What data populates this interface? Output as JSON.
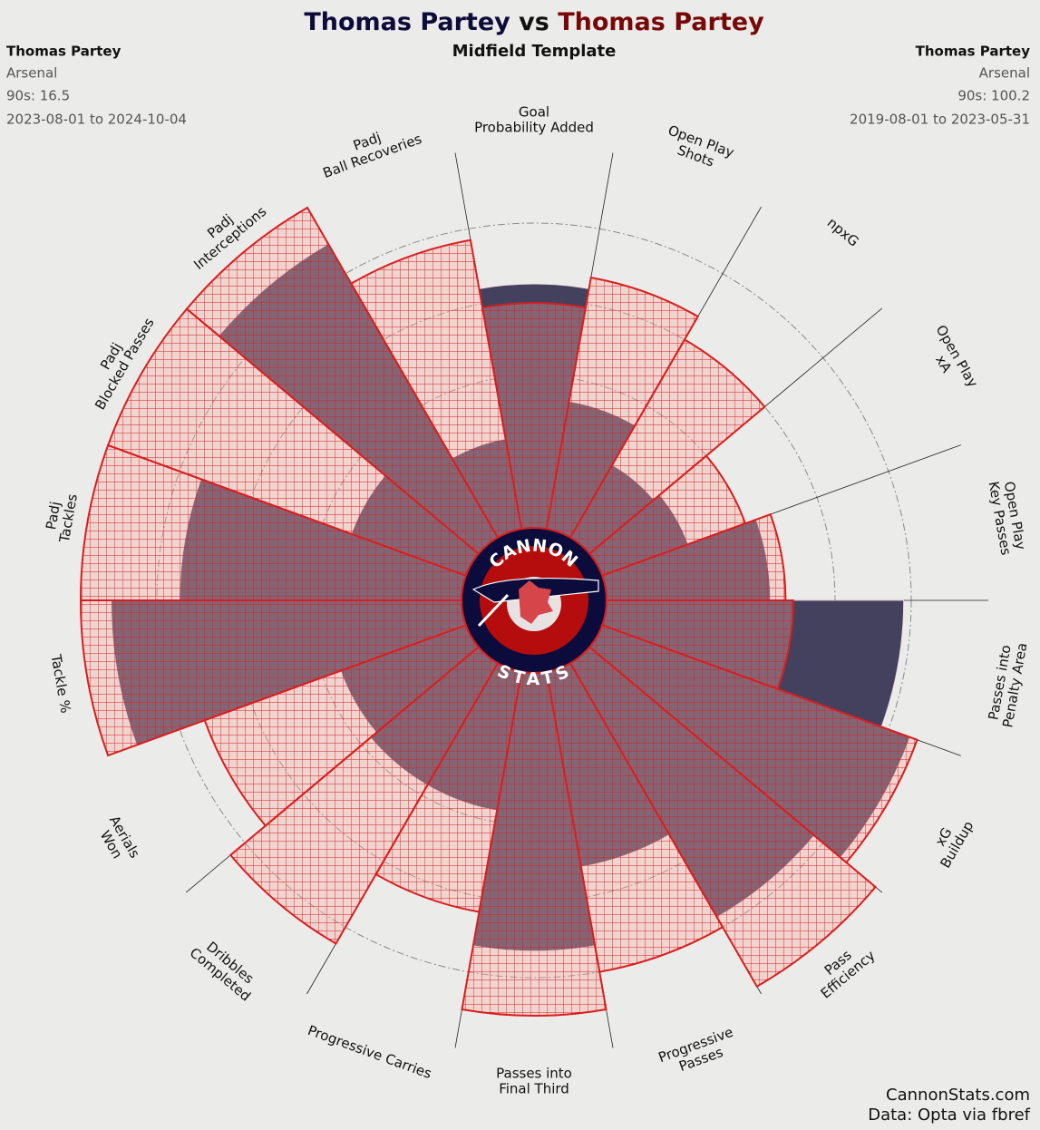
{
  "chart_data": {
    "type": "pizza",
    "title_connector": "vs",
    "subtitle": "Midfield Template",
    "series": [
      {
        "name": "Thomas Partey",
        "team": "Arsenal",
        "nineties": "90s: 16.5",
        "dates": "2023-08-01 to 2024-10-04",
        "color": "#44415f",
        "text_color": "#0d0b3a",
        "values": [
          64,
          34,
          22,
          24,
          43,
          78,
          86,
          77,
          52,
          73,
          37,
          37,
          35,
          92,
          74,
          32,
          89,
          24
        ]
      },
      {
        "name": "Thomas Partey",
        "team": "Arsenal",
        "nineties": "90s: 100.2",
        "dates": "2019-08-01 to 2023-05-31",
        "color": "#d91e1e",
        "text_color": "#780808",
        "values": [
          59,
          67,
          60,
          40,
          47,
          49,
          88,
          98,
          80,
          90,
          64,
          85,
          73,
          100,
          100,
          100,
          100,
          77
        ]
      }
    ],
    "categories": [
      [
        "Goal",
        "Probability Added"
      ],
      [
        "Open Play",
        "Shots"
      ],
      [
        "npxG"
      ],
      [
        "Open Play",
        "xA"
      ],
      [
        "Open Play",
        "Key Passes"
      ],
      [
        "Passes into",
        "Penalty Area"
      ],
      [
        "xG",
        "Buildup"
      ],
      [
        "Pass",
        "Efficiency"
      ],
      [
        "Progressive",
        "Passes"
      ],
      [
        "Passes into",
        "Final Third"
      ],
      [
        "Progressive Carries"
      ],
      [
        "Dribbles",
        "Completed"
      ],
      [
        "Aerials",
        "Won"
      ],
      [
        "Tackle %"
      ],
      [
        "Padj",
        "Tackles"
      ],
      [
        "Padj",
        "Blocked Passes"
      ],
      [
        "Padj",
        "Interceptions"
      ],
      [
        "Padj",
        "Ball Recoveries"
      ]
    ],
    "ylim": [
      0,
      100
    ],
    "yticks": [
      20,
      40,
      60,
      80
    ],
    "logo": {
      "top": "CANNON",
      "bottom": "STATS"
    },
    "footer": [
      "CannonStats.com",
      "Data: Opta via fbref"
    ]
  }
}
